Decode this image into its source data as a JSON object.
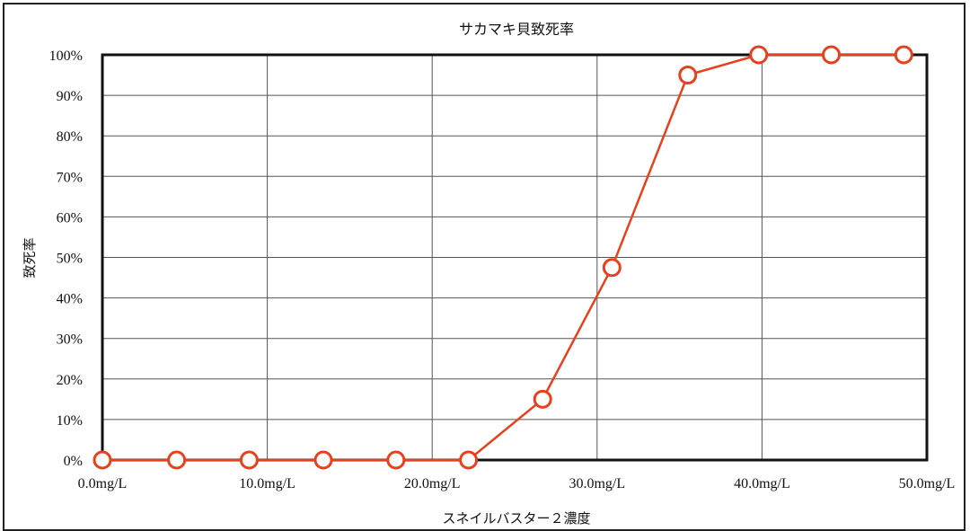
{
  "chart_data": {
    "type": "line",
    "title": "サカマキ貝致死率",
    "xlabel": "スネイルバスター２濃度",
    "ylabel": "致死率",
    "x_tick_labels": [
      "0.0mg/L",
      "10.0mg/L",
      "20.0mg/L",
      "30.0mg/L",
      "40.0mg/L",
      "50.0mg/L"
    ],
    "y_tick_labels": [
      "0%",
      "10%",
      "20%",
      "30%",
      "40%",
      "50%",
      "60%",
      "70%",
      "80%",
      "90%",
      "100%"
    ],
    "xlim": [
      0,
      50
    ],
    "ylim": [
      0,
      100
    ],
    "grid": true,
    "series": [
      {
        "color": "#e8401c",
        "marker": "hollow-circle",
        "x": [
          0,
          4.5,
          8.9,
          13.4,
          17.8,
          22.2,
          26.7,
          30.9,
          35.5,
          39.8,
          44.2,
          48.6
        ],
        "values": [
          0,
          0,
          0,
          0,
          0,
          0,
          15,
          47.5,
          95,
          100,
          100,
          100
        ]
      }
    ]
  },
  "colors": {
    "line": "#e8401c",
    "grid": "#555555",
    "plot_border": "#111111"
  }
}
